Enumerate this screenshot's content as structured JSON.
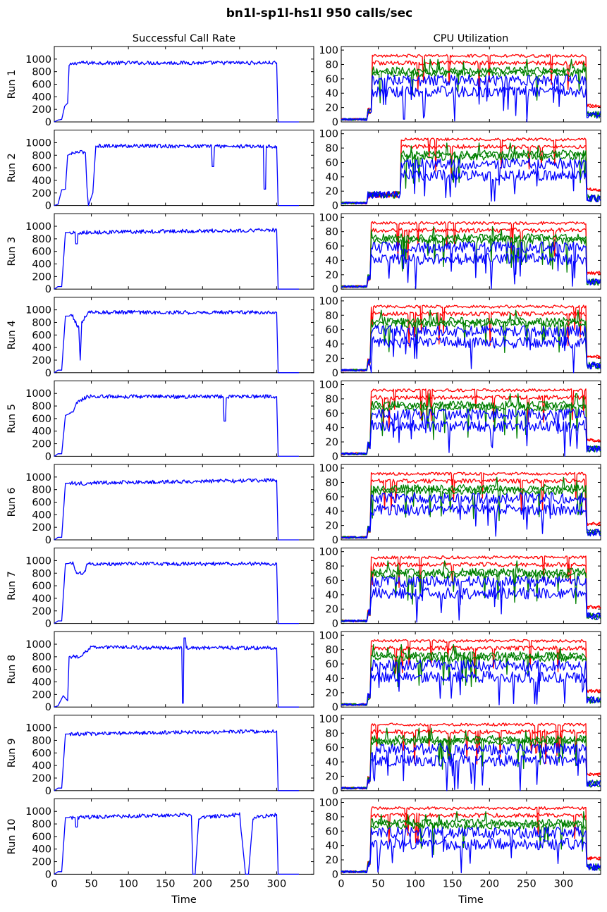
{
  "title": "bn1l-sp1l-hs1l 950 calls/sec",
  "colors": {
    "blue": "#0000ff",
    "red": "#ff0000",
    "green": "#008000"
  },
  "chart_data": [
    {
      "type": "line",
      "title": "Successful Call Rate",
      "xlabel": "Time",
      "xlim": [
        0,
        350
      ],
      "ylim": [
        0,
        1200
      ],
      "xticks": [
        0,
        50,
        100,
        150,
        200,
        250,
        300
      ],
      "yticks": [
        0,
        200,
        400,
        600,
        800,
        1000
      ],
      "runs": [
        {
          "label": "Run 1",
          "end": 300,
          "ramp": [
            [
              0,
              0
            ],
            [
              5,
              30
            ],
            [
              10,
              40
            ],
            [
              14,
              250
            ],
            [
              18,
              300
            ],
            [
              20,
              900
            ],
            [
              30,
              940
            ],
            [
              300,
              940
            ],
            [
              302,
              0
            ],
            [
              310,
              0
            ]
          ],
          "dips": []
        },
        {
          "label": "Run 2",
          "end": 300,
          "ramp": [
            [
              0,
              0
            ],
            [
              5,
              20
            ],
            [
              10,
              250
            ],
            [
              15,
              260
            ],
            [
              18,
              800
            ],
            [
              30,
              850
            ],
            [
              42,
              850
            ],
            [
              44,
              300
            ],
            [
              46,
              0
            ],
            [
              52,
              200
            ],
            [
              56,
              950
            ],
            [
              300,
              940
            ],
            [
              302,
              0
            ],
            [
              310,
              0
            ]
          ],
          "dips": [
            [
              214,
              620
            ],
            [
              284,
              260
            ]
          ]
        },
        {
          "label": "Run 3",
          "end": 300,
          "ramp": [
            [
              0,
              0
            ],
            [
              5,
              40
            ],
            [
              10,
              40
            ],
            [
              15,
              900
            ],
            [
              300,
              940
            ],
            [
              302,
              0
            ],
            [
              310,
              0
            ]
          ],
          "dips": [
            [
              30,
              720
            ]
          ]
        },
        {
          "label": "Run 4",
          "end": 300,
          "ramp": [
            [
              0,
              0
            ],
            [
              5,
              40
            ],
            [
              10,
              40
            ],
            [
              15,
              900
            ],
            [
              25,
              900
            ],
            [
              33,
              700
            ],
            [
              35,
              200
            ],
            [
              37,
              800
            ],
            [
              45,
              960
            ],
            [
              300,
              960
            ],
            [
              302,
              0
            ],
            [
              310,
              0
            ]
          ],
          "dips": []
        },
        {
          "label": "Run 5",
          "end": 300,
          "ramp": [
            [
              0,
              0
            ],
            [
              5,
              40
            ],
            [
              10,
              40
            ],
            [
              15,
              650
            ],
            [
              25,
              700
            ],
            [
              30,
              850
            ],
            [
              45,
              950
            ],
            [
              300,
              950
            ],
            [
              302,
              0
            ],
            [
              310,
              0
            ]
          ],
          "dips": [
            [
              230,
              560
            ]
          ]
        },
        {
          "label": "Run 6",
          "end": 300,
          "ramp": [
            [
              0,
              0
            ],
            [
              5,
              40
            ],
            [
              10,
              40
            ],
            [
              15,
              900
            ],
            [
              300,
              950
            ],
            [
              302,
              0
            ],
            [
              310,
              0
            ]
          ],
          "dips": [
            [
              40,
              870
            ]
          ]
        },
        {
          "label": "Run 7",
          "end": 300,
          "ramp": [
            [
              0,
              0
            ],
            [
              5,
              40
            ],
            [
              10,
              40
            ],
            [
              15,
              950
            ],
            [
              25,
              960
            ],
            [
              30,
              800
            ],
            [
              40,
              800
            ],
            [
              45,
              950
            ],
            [
              300,
              950
            ],
            [
              302,
              0
            ],
            [
              310,
              0
            ]
          ],
          "dips": []
        },
        {
          "label": "Run 8",
          "end": 300,
          "ramp": [
            [
              0,
              0
            ],
            [
              5,
              20
            ],
            [
              12,
              180
            ],
            [
              18,
              100
            ],
            [
              20,
              800
            ],
            [
              35,
              800
            ],
            [
              50,
              950
            ],
            [
              300,
              940
            ],
            [
              302,
              0
            ],
            [
              310,
              0
            ]
          ],
          "dips": [
            [
              174,
              60
            ],
            [
              176,
              1100
            ]
          ]
        },
        {
          "label": "Run 9",
          "end": 300,
          "ramp": [
            [
              0,
              0
            ],
            [
              5,
              40
            ],
            [
              10,
              40
            ],
            [
              15,
              900
            ],
            [
              300,
              950
            ],
            [
              302,
              0
            ],
            [
              310,
              0
            ]
          ],
          "dips": []
        },
        {
          "label": "Run 10",
          "end": 300,
          "ramp": [
            [
              0,
              0
            ],
            [
              5,
              40
            ],
            [
              10,
              40
            ],
            [
              15,
              900
            ],
            [
              185,
              950
            ],
            [
              187,
              0
            ],
            [
              190,
              0
            ],
            [
              195,
              900
            ],
            [
              250,
              950
            ],
            [
              258,
              0
            ],
            [
              262,
              0
            ],
            [
              268,
              900
            ],
            [
              300,
              950
            ],
            [
              302,
              0
            ],
            [
              310,
              0
            ]
          ],
          "dips": [
            [
              30,
              750
            ]
          ]
        }
      ]
    },
    {
      "type": "line",
      "title": "CPU Utilization",
      "xlabel": "Time",
      "xlim": [
        0,
        350
      ],
      "ylim": [
        0,
        105
      ],
      "xticks": [
        0,
        50,
        100,
        150,
        200,
        250,
        300
      ],
      "yticks": [
        0,
        20,
        40,
        60,
        80,
        100
      ],
      "runs": [
        {
          "label": "Run 1",
          "start": 42,
          "end": 330
        },
        {
          "label": "Run 2",
          "start": 80,
          "end": 330
        },
        {
          "label": "Run 3",
          "start": 40,
          "end": 330
        },
        {
          "label": "Run 4",
          "start": 40,
          "end": 330
        },
        {
          "label": "Run 5",
          "start": 40,
          "end": 330
        },
        {
          "label": "Run 6",
          "start": 40,
          "end": 330
        },
        {
          "label": "Run 7",
          "start": 40,
          "end": 330
        },
        {
          "label": "Run 8",
          "start": 40,
          "end": 330
        },
        {
          "label": "Run 9",
          "start": 40,
          "end": 330
        },
        {
          "label": "Run 10",
          "start": 40,
          "end": 330
        }
      ],
      "series": [
        {
          "color": "red",
          "level": 92,
          "noise": 2
        },
        {
          "color": "red",
          "level": 82,
          "noise": 3
        },
        {
          "color": "green",
          "level": 72,
          "noise": 5
        },
        {
          "color": "green",
          "level": 68,
          "noise": 5
        },
        {
          "color": "blue",
          "level": 58,
          "noise": 8
        },
        {
          "color": "blue",
          "level": 42,
          "noise": 8
        }
      ]
    }
  ]
}
